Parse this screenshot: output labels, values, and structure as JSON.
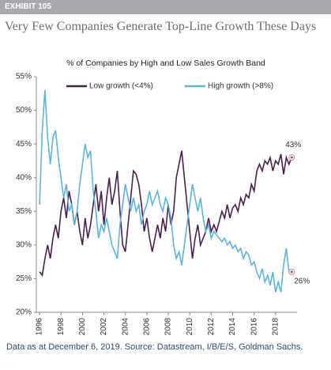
{
  "header": "EXHIBIT 105",
  "title": "Very Few Companies Generate Top-Line Growth These Days",
  "footer": "Data as at December 6, 2019. Source: Datastream, I/B/E/S, Goldman Sachs.",
  "chart_data": {
    "type": "line",
    "title": "% of Companies by High and Low Sales Growth Band",
    "x": [
      1996,
      1996.25,
      1996.5,
      1996.75,
      1997,
      1997.25,
      1997.5,
      1997.75,
      1998,
      1998.25,
      1998.5,
      1998.75,
      1999,
      1999.25,
      1999.5,
      1999.75,
      2000,
      2000.25,
      2000.5,
      2000.75,
      2001,
      2001.25,
      2001.5,
      2001.75,
      2002,
      2002.25,
      2002.5,
      2002.75,
      2003,
      2003.25,
      2003.5,
      2003.75,
      2004,
      2004.25,
      2004.5,
      2004.75,
      2005,
      2005.25,
      2005.5,
      2005.75,
      2006,
      2006.25,
      2006.5,
      2006.75,
      2007,
      2007.25,
      2007.5,
      2007.75,
      2008,
      2008.25,
      2008.5,
      2008.75,
      2009,
      2009.25,
      2009.5,
      2009.75,
      2010,
      2010.25,
      2010.5,
      2010.75,
      2011,
      2011.25,
      2011.5,
      2011.75,
      2012,
      2012.25,
      2012.5,
      2012.75,
      2013,
      2013.25,
      2013.5,
      2013.75,
      2014,
      2014.25,
      2014.5,
      2014.75,
      2015,
      2015.25,
      2015.5,
      2015.75,
      2016,
      2016.25,
      2016.5,
      2016.75,
      2017,
      2017.25,
      2017.5,
      2017.75,
      2018,
      2018.25,
      2018.5,
      2018.75,
      2019,
      2019.25,
      2019.5
    ],
    "series": [
      {
        "name": "Low growth (<4%)",
        "color": "#4b1e4f",
        "end_label": "43%",
        "values": [
          26,
          25.5,
          28,
          30,
          28,
          31,
          33,
          31,
          35,
          37,
          34,
          38,
          36,
          33,
          35,
          32,
          30,
          34,
          31,
          33,
          36,
          39,
          35,
          38,
          33,
          37,
          40,
          36,
          38,
          41,
          35,
          30,
          29,
          33,
          37,
          41,
          40.5,
          39,
          36,
          32,
          34,
          31,
          29,
          31,
          33,
          31,
          34,
          32,
          36,
          33,
          35,
          40,
          42,
          44,
          40,
          36,
          32,
          28,
          31,
          33,
          30,
          31,
          32,
          34,
          32,
          33,
          32,
          33.5,
          35,
          34,
          36,
          34,
          35.5,
          36,
          35,
          37,
          36,
          37.5,
          37,
          39,
          38,
          41,
          42,
          41,
          42.5,
          42,
          43,
          41,
          42.5,
          42,
          43.5,
          40.5,
          43,
          42,
          43
        ]
      },
      {
        "name": "High growth (>8%)",
        "color": "#5ab4e0",
        "end_label": "26%",
        "values": [
          36,
          47,
          53,
          46,
          42,
          46,
          47,
          43,
          40,
          37,
          39,
          35,
          36,
          33,
          35,
          39,
          42,
          45,
          43,
          44,
          38,
          35,
          31,
          33,
          32,
          34,
          32,
          30,
          29,
          28,
          33,
          36,
          39,
          37,
          35,
          37,
          35,
          36,
          33,
          35,
          36,
          38,
          36,
          37,
          38,
          36,
          35,
          37,
          36,
          34,
          30,
          28,
          29,
          27,
          30,
          33,
          36,
          39,
          37,
          35,
          37,
          34,
          32,
          33,
          31,
          32,
          31.5,
          31,
          30.5,
          31,
          30,
          30.5,
          29.5,
          30,
          29,
          29.5,
          28,
          29,
          28.5,
          27,
          27.5,
          26,
          25,
          26.5,
          24.5,
          25.5,
          24,
          26,
          23,
          24.5,
          23,
          27,
          29.5,
          26,
          26
        ]
      }
    ],
    "xlim": [
      1995.7,
      2020
    ],
    "xticks": [
      1996,
      1998,
      2000,
      2002,
      2004,
      2006,
      2008,
      2010,
      2012,
      2014,
      2016,
      2018
    ],
    "ylim": [
      20,
      55
    ],
    "yticks": [
      {
        "value": 20,
        "label": "20%"
      },
      {
        "value": 25,
        "label": "25%"
      },
      {
        "value": 30,
        "label": "30%"
      },
      {
        "value": 35,
        "label": "35%"
      },
      {
        "value": 40,
        "label": "40%"
      },
      {
        "value": 45,
        "label": "45%"
      },
      {
        "value": 50,
        "label": "50%"
      },
      {
        "value": 55,
        "label": "55%"
      }
    ],
    "grid": false
  }
}
